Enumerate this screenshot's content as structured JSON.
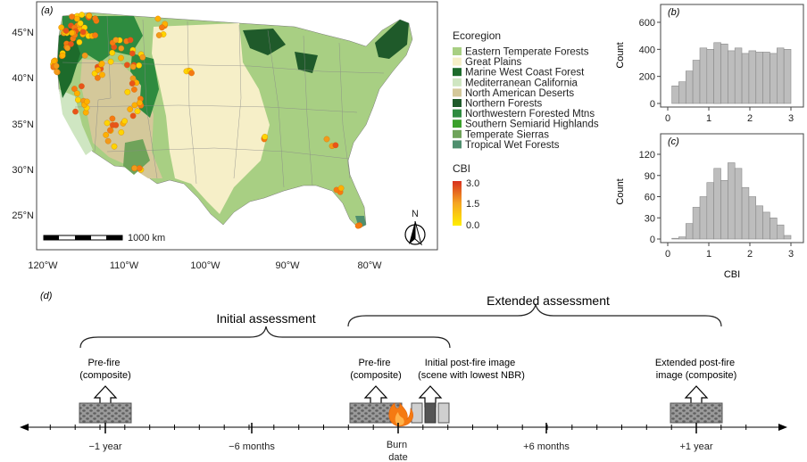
{
  "map": {
    "panel_label": "(a)",
    "lat_labels": [
      "45°N",
      "40°N",
      "35°N",
      "30°N",
      "25°N"
    ],
    "lon_labels": [
      "120°W",
      "110°W",
      "100°W",
      "90°W",
      "80°W"
    ],
    "scale_label": "1000 km",
    "north_label": "N",
    "legend_title": "Ecoregion",
    "ecoregions": [
      {
        "name": "Eastern Temperate Forests",
        "color": "#a8cf83"
      },
      {
        "name": "Great Plains",
        "color": "#f6efc8"
      },
      {
        "name": "Marine West Coast Forest",
        "color": "#1d6b2b"
      },
      {
        "name": "Mediterranean California",
        "color": "#cfe6c2"
      },
      {
        "name": "North American Deserts",
        "color": "#d4c89a"
      },
      {
        "name": "Northern Forests",
        "color": "#1f5a2a"
      },
      {
        "name": "Northwestern Forested Mtns",
        "color": "#2e8b3f"
      },
      {
        "name": "Southern Semiarid Highlands",
        "color": "#3aa02a"
      },
      {
        "name": "Temperate Sierras",
        "color": "#6fa35a"
      },
      {
        "name": "Tropical Wet Forests",
        "color": "#4f8f6e"
      }
    ],
    "cbi_title": "CBI",
    "cbi_ticks": [
      "3.0",
      "1.5",
      "0.0"
    ]
  },
  "hist_b": {
    "panel_label": "(b)",
    "ylabel": "Count",
    "yticks": [
      "0",
      "200",
      "400",
      "600"
    ],
    "ymax": 600,
    "xticks": [
      "0",
      "1",
      "2",
      "3"
    ],
    "counts": [
      130,
      160,
      240,
      320,
      410,
      400,
      450,
      440,
      390,
      410,
      370,
      390,
      380,
      380,
      370,
      410,
      400
    ]
  },
  "hist_c": {
    "panel_label": "(c)",
    "ylabel": "Count",
    "xlabel": "CBI",
    "yticks": [
      "0",
      "30",
      "60",
      "90",
      "120"
    ],
    "ymax": 120,
    "xticks": [
      "0",
      "1",
      "2",
      "3"
    ],
    "counts": [
      1,
      3,
      22,
      45,
      60,
      80,
      100,
      83,
      108,
      100,
      73,
      60,
      47,
      38,
      30,
      20,
      5
    ]
  },
  "timeline": {
    "panel_label": "(d)",
    "initial_label": "Initial assessment",
    "extended_label": "Extended assessment",
    "box_prefire1": "Pre-fire\n(composite)",
    "box_prefire2": "Pre-fire\n(composite)",
    "box_initial_post": "Initial post-fire image\n(scene with lowest NBR)",
    "box_extended_post": "Extended post-fire\nimage (composite)",
    "ticks": [
      {
        "label": "−1 year"
      },
      {
        "label": "−6 months"
      },
      {
        "label": "Burn\ndate"
      },
      {
        "label": "+6 months"
      },
      {
        "label": "+1 year"
      }
    ]
  }
}
